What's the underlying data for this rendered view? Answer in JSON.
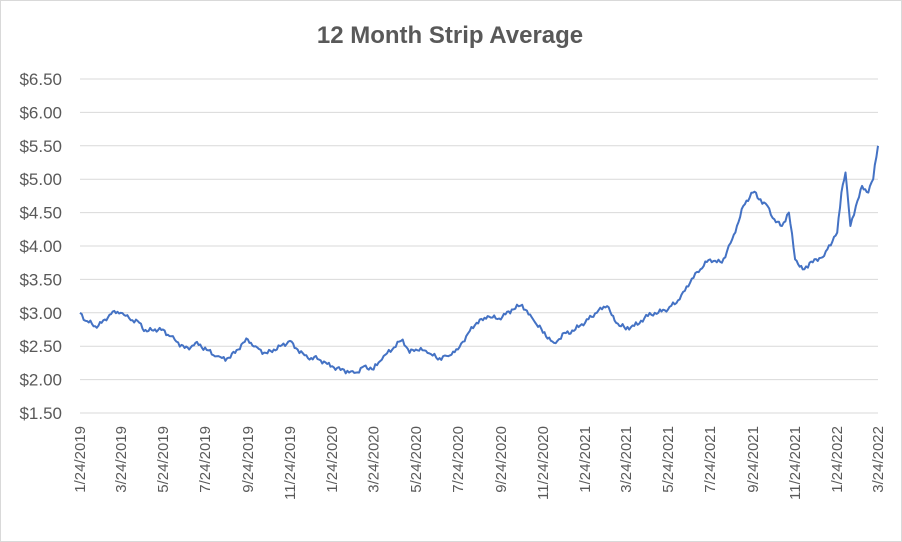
{
  "chart_data": {
    "type": "line",
    "title": "12 Month Strip Average",
    "xlabel": "",
    "ylabel": "",
    "x_start": "1/24/2019",
    "x_end": "3/24/2022",
    "ylim": [
      1.5,
      6.5
    ],
    "y_ticks": [
      "$1.50",
      "$2.00",
      "$2.50",
      "$3.00",
      "$3.50",
      "$4.00",
      "$4.50",
      "$5.00",
      "$5.50",
      "$6.00",
      "$6.50"
    ],
    "x_ticks": [
      "1/24/2019",
      "3/24/2019",
      "5/24/2019",
      "7/24/2019",
      "9/24/2019",
      "11/24/2019",
      "1/24/2020",
      "3/24/2020",
      "5/24/2020",
      "7/24/2020",
      "9/24/2020",
      "11/24/2020",
      "1/24/2021",
      "3/24/2021",
      "5/24/2021",
      "7/24/2021",
      "9/24/2021",
      "11/24/2021",
      "1/24/2022",
      "3/24/2022"
    ],
    "grid": true,
    "legend": "none",
    "series": [
      {
        "color": "#4472c4",
        "points": [
          [
            "1/24/2019",
            3.0
          ],
          [
            "2/1/2019",
            2.88
          ],
          [
            "2/15/2019",
            2.8
          ],
          [
            "3/1/2019",
            2.9
          ],
          [
            "3/10/2019",
            2.98
          ],
          [
            "3/24/2019",
            3.0
          ],
          [
            "4/5/2019",
            2.92
          ],
          [
            "4/20/2019",
            2.85
          ],
          [
            "5/1/2019",
            2.72
          ],
          [
            "5/24/2019",
            2.75
          ],
          [
            "6/5/2019",
            2.65
          ],
          [
            "6/20/2019",
            2.52
          ],
          [
            "7/1/2019",
            2.45
          ],
          [
            "7/10/2019",
            2.55
          ],
          [
            "7/24/2019",
            2.48
          ],
          [
            "8/10/2019",
            2.35
          ],
          [
            "8/25/2019",
            2.32
          ],
          [
            "9/10/2019",
            2.45
          ],
          [
            "9/24/2019",
            2.6
          ],
          [
            "10/5/2019",
            2.5
          ],
          [
            "10/20/2019",
            2.4
          ],
          [
            "11/5/2019",
            2.45
          ],
          [
            "11/24/2019",
            2.58
          ],
          [
            "12/5/2019",
            2.45
          ],
          [
            "12/20/2019",
            2.32
          ],
          [
            "1/5/2020",
            2.3
          ],
          [
            "1/24/2020",
            2.2
          ],
          [
            "2/10/2020",
            2.15
          ],
          [
            "2/25/2020",
            2.1
          ],
          [
            "3/10/2020",
            2.2
          ],
          [
            "3/24/2020",
            2.15
          ],
          [
            "4/5/2020",
            2.3
          ],
          [
            "4/20/2020",
            2.45
          ],
          [
            "5/5/2020",
            2.6
          ],
          [
            "5/15/2020",
            2.4
          ],
          [
            "5/24/2020",
            2.45
          ],
          [
            "6/10/2020",
            2.4
          ],
          [
            "6/25/2020",
            2.3
          ],
          [
            "7/10/2020",
            2.35
          ],
          [
            "7/24/2020",
            2.45
          ],
          [
            "8/5/2020",
            2.65
          ],
          [
            "8/20/2020",
            2.85
          ],
          [
            "9/5/2020",
            2.95
          ],
          [
            "9/24/2020",
            2.9
          ],
          [
            "10/10/2020",
            3.05
          ],
          [
            "10/25/2020",
            3.12
          ],
          [
            "11/10/2020",
            2.9
          ],
          [
            "11/24/2020",
            2.7
          ],
          [
            "12/10/2020",
            2.55
          ],
          [
            "12/25/2020",
            2.7
          ],
          [
            "1/10/2021",
            2.75
          ],
          [
            "1/24/2021",
            2.85
          ],
          [
            "2/10/2021",
            3.0
          ],
          [
            "2/25/2021",
            3.1
          ],
          [
            "3/10/2021",
            2.85
          ],
          [
            "3/24/2021",
            2.75
          ],
          [
            "4/10/2021",
            2.82
          ],
          [
            "4/25/2021",
            2.95
          ],
          [
            "5/10/2021",
            3.0
          ],
          [
            "5/24/2021",
            3.05
          ],
          [
            "6/10/2021",
            3.2
          ],
          [
            "6/25/2021",
            3.45
          ],
          [
            "7/10/2021",
            3.65
          ],
          [
            "7/24/2021",
            3.8
          ],
          [
            "8/10/2021",
            3.75
          ],
          [
            "8/25/2021",
            4.1
          ],
          [
            "9/10/2021",
            4.6
          ],
          [
            "9/24/2021",
            4.8
          ],
          [
            "10/5/2021",
            4.7
          ],
          [
            "10/15/2021",
            4.6
          ],
          [
            "10/25/2021",
            4.4
          ],
          [
            "11/5/2021",
            4.3
          ],
          [
            "11/15/2021",
            4.5
          ],
          [
            "11/24/2021",
            3.8
          ],
          [
            "12/5/2021",
            3.65
          ],
          [
            "12/15/2021",
            3.75
          ],
          [
            "1/5/2022",
            3.85
          ],
          [
            "1/24/2022",
            4.2
          ],
          [
            "1/30/2022",
            4.8
          ],
          [
            "2/5/2022",
            5.1
          ],
          [
            "2/12/2022",
            4.3
          ],
          [
            "2/20/2022",
            4.6
          ],
          [
            "3/1/2022",
            4.9
          ],
          [
            "3/10/2022",
            4.8
          ],
          [
            "3/17/2022",
            5.0
          ],
          [
            "3/24/2022",
            5.5
          ]
        ]
      }
    ]
  }
}
